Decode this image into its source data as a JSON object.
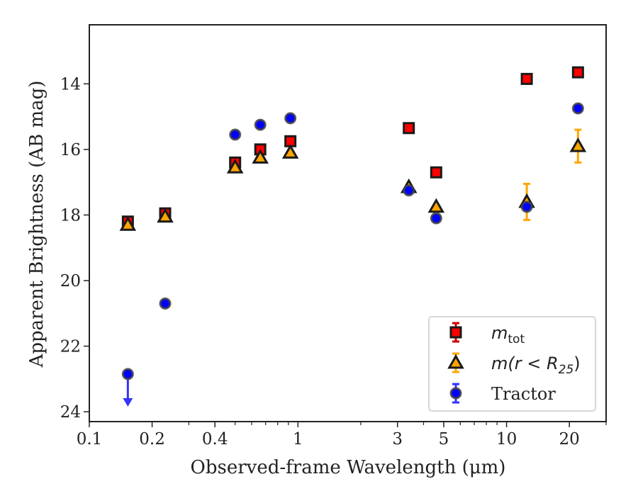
{
  "chart_data": {
    "type": "scatter",
    "xscale": "log",
    "yscale": "linear",
    "y_inverted": true,
    "xlim": [
      0.1,
      30
    ],
    "ylim": [
      24.3,
      12.2
    ],
    "xlabel": "Observed-frame Wavelength (μm)",
    "ylabel": "Apparent Brightness (AB mag)",
    "x_ticks": [
      0.1,
      0.2,
      0.4,
      1,
      3,
      5,
      10,
      20
    ],
    "x_tick_labels": [
      "0.1",
      "0.2",
      "0.4",
      "1",
      "3",
      "5",
      "10",
      "20"
    ],
    "y_ticks": [
      14,
      16,
      18,
      20,
      22,
      24
    ],
    "y_tick_labels": [
      "14",
      "16",
      "18",
      "20",
      "22",
      "24"
    ],
    "grid": false,
    "legend_position": "lower-right",
    "series": [
      {
        "name": "m_tot",
        "legend_label": "m",
        "legend_subscript": "tot",
        "marker": "square",
        "color": "#ff0000",
        "edge_color": "#1a1a1a",
        "errorbar_color": "#cc0000",
        "points": [
          {
            "x": 0.153,
            "y": 18.2,
            "err": 0.1
          },
          {
            "x": 0.231,
            "y": 17.95,
            "err": 0.1
          },
          {
            "x": 0.5,
            "y": 16.4,
            "err": 0.05
          },
          {
            "x": 0.66,
            "y": 16.0,
            "err": 0.05
          },
          {
            "x": 0.92,
            "y": 15.75,
            "err": 0.05
          },
          {
            "x": 3.4,
            "y": 15.35,
            "err": 0.05
          },
          {
            "x": 4.6,
            "y": 16.7,
            "err": 0.05
          },
          {
            "x": 12.5,
            "y": 13.85,
            "err": 0.05
          },
          {
            "x": 22.0,
            "y": 13.65,
            "err": 0.05
          }
        ]
      },
      {
        "name": "m(r<R_25)",
        "legend_label": "m(r < R",
        "legend_subscript": "25",
        "legend_suffix": ")",
        "marker": "triangle",
        "color": "#ffa500",
        "edge_color": "#1a1a1a",
        "errorbar_color": "#ffa500",
        "points": [
          {
            "x": 0.153,
            "y": 18.3,
            "err": 0.05
          },
          {
            "x": 0.231,
            "y": 18.05,
            "err": 0.05
          },
          {
            "x": 0.5,
            "y": 16.55,
            "err": 0.05
          },
          {
            "x": 0.66,
            "y": 16.25,
            "err": 0.05
          },
          {
            "x": 0.92,
            "y": 16.1,
            "err": 0.05
          },
          {
            "x": 3.4,
            "y": 17.15,
            "err": 0.05
          },
          {
            "x": 4.6,
            "y": 17.75,
            "err": 0.05
          },
          {
            "x": 12.5,
            "y": 17.6,
            "err": 0.55
          },
          {
            "x": 22.0,
            "y": 15.9,
            "err": 0.5
          }
        ]
      },
      {
        "name": "Tractor",
        "legend_label": "Tractor",
        "marker": "circle",
        "color": "#0000ff",
        "edge_color": "#444444",
        "errorbar_color": "#3333ff",
        "points": [
          {
            "x": 0.153,
            "y": 22.85,
            "err": 0,
            "upper_limit": true
          },
          {
            "x": 0.231,
            "y": 20.7,
            "err": 0.05
          },
          {
            "x": 0.5,
            "y": 15.55,
            "err": 0.05
          },
          {
            "x": 0.66,
            "y": 15.25,
            "err": 0.05
          },
          {
            "x": 0.92,
            "y": 15.05,
            "err": 0.05
          },
          {
            "x": 3.4,
            "y": 17.25,
            "err": 0.05
          },
          {
            "x": 4.6,
            "y": 18.1,
            "err": 0.05
          },
          {
            "x": 12.5,
            "y": 17.75,
            "err": 0.05
          },
          {
            "x": 22.0,
            "y": 14.75,
            "err": 0.05
          }
        ]
      }
    ]
  }
}
